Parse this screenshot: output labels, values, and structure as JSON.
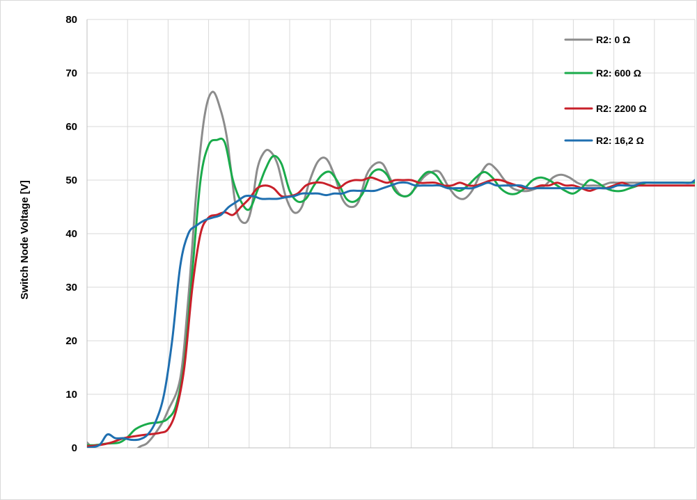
{
  "chart_data": {
    "type": "line",
    "title": "",
    "xlabel": "",
    "ylabel": "Switch Node Voltage [V]",
    "ylim": [
      0,
      80
    ],
    "y_ticks": [
      0,
      10,
      20,
      30,
      40,
      50,
      60,
      70,
      80
    ],
    "xlim": [
      0,
      15
    ],
    "x_gridlines": [
      1,
      2,
      3,
      4,
      5,
      6,
      7,
      8,
      9,
      10,
      11,
      12,
      13,
      14,
      15
    ],
    "grid": true,
    "legend_position": "top-right",
    "series": [
      {
        "name": "R2: 0 Ω",
        "color": "#8c8c8c",
        "x": [
          0,
          0.1,
          0.3,
          0.5,
          0.8,
          1.0,
          1.3,
          1.5,
          1.8,
          2.0,
          2.3,
          2.5,
          2.7,
          2.9,
          3.1,
          3.3,
          3.45,
          3.55,
          3.7,
          3.9,
          4.05,
          4.2,
          4.35,
          4.5,
          4.7,
          4.9,
          5.1,
          5.3,
          5.5,
          5.7,
          5.9,
          6.1,
          6.3,
          6.5,
          6.7,
          6.9,
          7.1,
          7.3,
          7.5,
          7.7,
          7.9,
          8.1,
          8.3,
          8.5,
          8.7,
          8.9,
          9.1,
          9.3,
          9.5,
          9.7,
          9.9,
          10.1,
          10.3,
          10.5,
          10.7,
          10.9,
          11.1,
          11.3,
          11.5,
          11.7,
          11.9,
          12.1,
          12.3,
          12.5,
          12.7,
          12.9,
          13.1,
          13.3,
          13.5,
          13.7,
          13.9,
          14.1,
          14.3,
          14.5,
          14.7,
          14.9,
          15.0
        ],
        "y": [
          1.0,
          0.2,
          -1.5,
          -2.0,
          -1.8,
          -1.5,
          0.2,
          1.0,
          4.0,
          7.0,
          13.0,
          28.0,
          48.0,
          62.0,
          66.5,
          63.0,
          58.0,
          52.0,
          44.0,
          42.0,
          44.5,
          52.0,
          55.0,
          55.5,
          53.0,
          47.0,
          44.0,
          45.0,
          50.0,
          53.5,
          54.0,
          51.0,
          46.5,
          45.0,
          46.0,
          51.0,
          53.0,
          53.0,
          50.0,
          47.5,
          47.0,
          48.5,
          50.5,
          51.5,
          51.5,
          49.0,
          47.0,
          46.5,
          48.0,
          51.0,
          53.0,
          52.0,
          50.0,
          48.5,
          48.0,
          48.0,
          48.5,
          49.0,
          50.5,
          51.0,
          50.5,
          49.5,
          49.0,
          49.0,
          49.0,
          49.5,
          49.5,
          49.5,
          49.5,
          49.5,
          49.5,
          49.5,
          49.5,
          49.5,
          49.5,
          49.5,
          49.5
        ]
      },
      {
        "name": "R2: 600 Ω",
        "color": "#1aab4b",
        "x": [
          0,
          0.2,
          0.5,
          0.8,
          1.0,
          1.2,
          1.5,
          1.8,
          2.0,
          2.2,
          2.4,
          2.6,
          2.8,
          3.0,
          3.2,
          3.4,
          3.6,
          3.8,
          4.0,
          4.2,
          4.4,
          4.6,
          4.8,
          5.0,
          5.2,
          5.4,
          5.6,
          5.8,
          6.0,
          6.2,
          6.4,
          6.6,
          6.8,
          7.0,
          7.2,
          7.4,
          7.6,
          7.8,
          8.0,
          8.2,
          8.4,
          8.6,
          8.8,
          9.0,
          9.2,
          9.4,
          9.6,
          9.8,
          10.0,
          10.2,
          10.4,
          10.6,
          10.8,
          11.0,
          11.2,
          11.4,
          11.6,
          11.8,
          12.0,
          12.2,
          12.4,
          12.6,
          12.8,
          13.0,
          13.2,
          13.4,
          13.6,
          13.8,
          14.0,
          14.2,
          14.4,
          14.6,
          14.8,
          15.0
        ],
        "y": [
          0.5,
          0.5,
          0.8,
          1.0,
          2.0,
          3.5,
          4.5,
          4.8,
          5.5,
          8.0,
          16.0,
          33.0,
          50.0,
          56.5,
          57.5,
          57.0,
          50.0,
          46.0,
          44.5,
          48.0,
          52.0,
          54.5,
          53.0,
          48.0,
          46.0,
          46.5,
          49.0,
          51.0,
          51.5,
          49.5,
          46.5,
          46.0,
          47.5,
          51.0,
          52.0,
          51.0,
          48.0,
          47.0,
          47.5,
          50.0,
          51.5,
          51.0,
          49.0,
          48.5,
          48.0,
          49.0,
          50.5,
          51.5,
          50.5,
          48.5,
          47.5,
          47.5,
          48.5,
          50.0,
          50.5,
          50.0,
          49.0,
          48.0,
          47.5,
          48.5,
          50.0,
          49.5,
          48.5,
          48.0,
          48.0,
          48.5,
          49.0,
          49.5,
          49.5,
          49.5,
          49.5,
          49.5,
          49.5,
          49.5
        ]
      },
      {
        "name": "R2: 2200 Ω",
        "color": "#c8202a",
        "x": [
          0,
          0.3,
          0.6,
          0.9,
          1.2,
          1.5,
          1.8,
          2.0,
          2.2,
          2.4,
          2.6,
          2.8,
          3.0,
          3.2,
          3.4,
          3.6,
          3.8,
          4.0,
          4.2,
          4.4,
          4.6,
          4.8,
          5.0,
          5.2,
          5.4,
          5.6,
          5.8,
          6.0,
          6.2,
          6.4,
          6.6,
          6.8,
          7.0,
          7.2,
          7.4,
          7.6,
          7.8,
          8.0,
          8.2,
          8.4,
          8.6,
          8.8,
          9.0,
          9.2,
          9.4,
          9.6,
          9.8,
          10.0,
          10.2,
          10.4,
          10.6,
          10.8,
          11.0,
          11.2,
          11.4,
          11.6,
          11.8,
          12.0,
          12.2,
          12.4,
          12.6,
          12.8,
          13.0,
          13.2,
          13.4,
          13.6,
          13.8,
          14.0,
          14.2,
          14.4,
          14.6,
          14.8,
          15.0
        ],
        "y": [
          0.3,
          0.5,
          1.0,
          1.8,
          2.2,
          2.5,
          2.8,
          3.5,
          7.0,
          15.0,
          30.0,
          40.0,
          43.0,
          43.5,
          44.0,
          43.5,
          45.0,
          46.5,
          48.5,
          49.0,
          48.5,
          47.0,
          47.0,
          47.5,
          49.0,
          49.5,
          49.5,
          49.0,
          48.5,
          49.5,
          50.0,
          50.0,
          50.5,
          50.0,
          49.5,
          50.0,
          50.0,
          50.0,
          49.5,
          49.5,
          49.5,
          49.0,
          49.0,
          49.5,
          49.0,
          49.0,
          49.5,
          50.0,
          50.0,
          49.5,
          49.0,
          48.5,
          48.5,
          49.0,
          49.0,
          49.5,
          49.0,
          49.0,
          48.5,
          48.0,
          48.5,
          48.5,
          49.0,
          49.5,
          49.0,
          49.0,
          49.0,
          49.0,
          49.0,
          49.0,
          49.0,
          49.0,
          49.0
        ]
      },
      {
        "name": "R2: 16,2 Ω",
        "color": "#1f6fb0",
        "x": [
          0,
          0.3,
          0.5,
          0.7,
          0.9,
          1.1,
          1.3,
          1.5,
          1.7,
          1.9,
          2.1,
          2.3,
          2.5,
          2.7,
          2.9,
          3.1,
          3.3,
          3.5,
          3.7,
          3.9,
          4.1,
          4.3,
          4.5,
          4.7,
          4.9,
          5.1,
          5.3,
          5.5,
          5.7,
          5.9,
          6.1,
          6.3,
          6.5,
          6.7,
          6.9,
          7.1,
          7.3,
          7.5,
          7.7,
          7.9,
          8.1,
          8.3,
          8.5,
          8.7,
          8.9,
          9.1,
          9.3,
          9.5,
          9.7,
          9.9,
          10.1,
          10.3,
          10.5,
          10.7,
          10.9,
          11.1,
          11.3,
          11.5,
          11.7,
          11.9,
          12.1,
          12.3,
          12.5,
          12.7,
          12.9,
          13.1,
          13.3,
          13.5,
          13.7,
          13.9,
          14.1,
          14.3,
          14.5,
          14.7,
          14.9,
          15.0
        ],
        "y": [
          0.0,
          0.5,
          2.5,
          1.8,
          1.8,
          1.5,
          1.6,
          2.5,
          5.0,
          10.0,
          20.0,
          34.0,
          40.0,
          41.5,
          42.5,
          43.0,
          43.5,
          45.0,
          46.0,
          47.0,
          47.0,
          46.5,
          46.5,
          46.5,
          46.8,
          47.0,
          47.5,
          47.5,
          47.5,
          47.2,
          47.5,
          47.5,
          48.0,
          48.0,
          48.0,
          48.0,
          48.5,
          49.0,
          49.5,
          49.5,
          49.0,
          49.0,
          49.0,
          49.0,
          48.5,
          48.5,
          48.5,
          48.5,
          49.0,
          49.5,
          49.0,
          49.0,
          49.0,
          49.0,
          48.5,
          48.5,
          48.5,
          48.5,
          48.5,
          48.5,
          48.5,
          48.5,
          48.5,
          48.5,
          48.5,
          49.0,
          49.0,
          49.0,
          49.5,
          49.5,
          49.5,
          49.5,
          49.5,
          49.5,
          49.5,
          50.0
        ]
      }
    ]
  }
}
